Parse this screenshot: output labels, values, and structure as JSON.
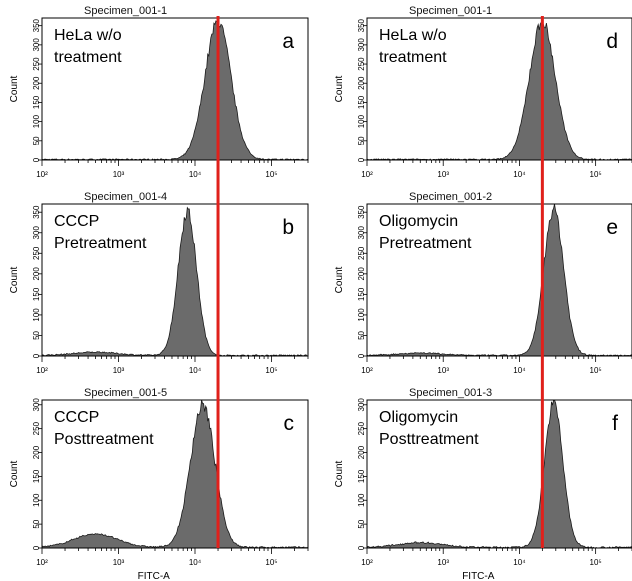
{
  "chart_data": [
    {
      "type": "area",
      "panel_label": "a",
      "specimen": "Specimen_001-1",
      "condition_lines": [
        "HeLa w/o",
        "treatment"
      ],
      "ylabel": "Count",
      "xlabel": "",
      "xscale": "log",
      "xlim": [
        100,
        300000
      ],
      "ylim": [
        0,
        370
      ],
      "peak_log10": 4.3,
      "sigma": 0.17,
      "peak_count": 358,
      "shoulder_count": 0,
      "yticks": [
        0,
        50,
        100,
        150,
        200,
        250,
        300,
        350
      ],
      "xtick_labels": [
        "10²",
        "10³",
        "10⁴",
        "10⁵"
      ]
    },
    {
      "type": "area",
      "panel_label": "b",
      "specimen": "Specimen_001-4",
      "condition_lines": [
        "CCCP",
        "Pretreatment"
      ],
      "ylabel": "Count",
      "xlabel": "",
      "xscale": "log",
      "xlim": [
        100,
        300000
      ],
      "ylim": [
        0,
        370
      ],
      "peak_log10": 3.9,
      "sigma": 0.12,
      "peak_count": 352,
      "shoulder_count": 8,
      "yticks": [
        0,
        50,
        100,
        150,
        200,
        250,
        300,
        350
      ],
      "xtick_labels": [
        "10²",
        "10³",
        "10⁴",
        "10⁵"
      ]
    },
    {
      "type": "area",
      "panel_label": "c",
      "specimen": "Specimen_001-5",
      "condition_lines": [
        "CCCP",
        "Posttreatment"
      ],
      "ylabel": "Count",
      "xlabel": "FITC-A",
      "xscale": "log",
      "xlim": [
        100,
        300000
      ],
      "ylim": [
        0,
        310
      ],
      "peak_log10": 4.1,
      "sigma": 0.16,
      "peak_count": 298,
      "shoulder_count": 28,
      "yticks": [
        0,
        50,
        100,
        150,
        200,
        250,
        300
      ],
      "xtick_labels": [
        "10²",
        "10³",
        "10⁴",
        "10⁵"
      ]
    },
    {
      "type": "area",
      "panel_label": "d",
      "specimen": "Specimen_001-1",
      "condition_lines": [
        "HeLa w/o",
        "treatment"
      ],
      "ylabel": "Count",
      "xlabel": "",
      "xscale": "log",
      "xlim": [
        100,
        300000
      ],
      "ylim": [
        0,
        370
      ],
      "peak_log10": 4.3,
      "sigma": 0.17,
      "peak_count": 358,
      "shoulder_count": 0,
      "yticks": [
        0,
        50,
        100,
        150,
        200,
        250,
        300,
        350
      ],
      "xtick_labels": [
        "10²",
        "10³",
        "10⁴",
        "10⁵"
      ]
    },
    {
      "type": "area",
      "panel_label": "e",
      "specimen": "Specimen_001-2",
      "condition_lines": [
        "Oligomycin",
        "Pretreatment"
      ],
      "ylabel": "Count",
      "xlabel": "",
      "xscale": "log",
      "xlim": [
        100,
        300000
      ],
      "ylim": [
        0,
        370
      ],
      "peak_log10": 4.45,
      "sigma": 0.13,
      "peak_count": 358,
      "shoulder_count": 6,
      "yticks": [
        0,
        50,
        100,
        150,
        200,
        250,
        300,
        350
      ],
      "xtick_labels": [
        "10²",
        "10³",
        "10⁴",
        "10⁵"
      ]
    },
    {
      "type": "area",
      "panel_label": "f",
      "specimen": "Specimen_001-3",
      "condition_lines": [
        "Oligomycin",
        "Posttreatment"
      ],
      "ylabel": "Count",
      "xlabel": "FITC-A",
      "xscale": "log",
      "xlim": [
        100,
        300000
      ],
      "ylim": [
        0,
        310
      ],
      "peak_log10": 4.45,
      "sigma": 0.12,
      "peak_count": 302,
      "shoulder_count": 10,
      "yticks": [
        0,
        50,
        100,
        150,
        200,
        250,
        300
      ],
      "xtick_labels": [
        "10²",
        "10³",
        "10⁴",
        "10⁵"
      ]
    }
  ],
  "reference_line": {
    "x_value": 20000,
    "color": "#e0201b"
  },
  "colors": {
    "fill": "#6b6b6b",
    "outline": "#1a1a1a",
    "axis": "#000000"
  }
}
